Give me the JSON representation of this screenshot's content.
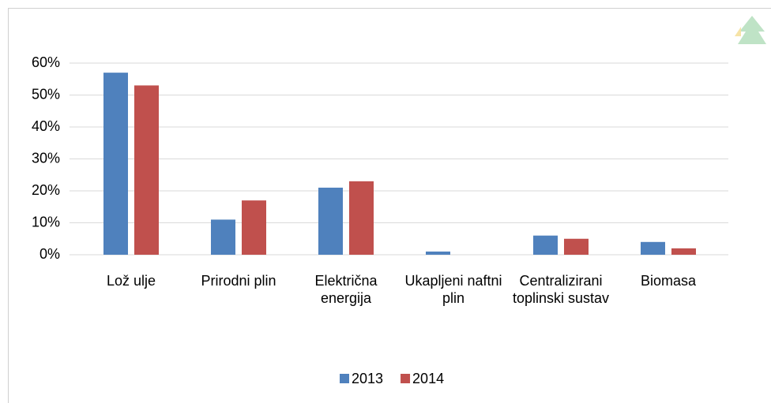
{
  "chart_data": {
    "type": "bar",
    "categories": [
      "Lož ulje",
      "Prirodni plin",
      "Električna energija",
      "Ukapljeni naftni plin",
      "Centralizirani toplinski sustav",
      "Biomasa"
    ],
    "series": [
      {
        "name": "2013",
        "color": "#4f81bd",
        "values": [
          57,
          11,
          21,
          1,
          6,
          4
        ]
      },
      {
        "name": "2014",
        "color": "#c0504d",
        "values": [
          53,
          17,
          23,
          0,
          5,
          2
        ]
      }
    ],
    "ylim": [
      0,
      60
    ],
    "yticks": [
      {
        "value": 0,
        "label": "0%"
      },
      {
        "value": 10,
        "label": "10%"
      },
      {
        "value": 20,
        "label": "20%"
      },
      {
        "value": 30,
        "label": "30%"
      },
      {
        "value": 40,
        "label": "40%"
      },
      {
        "value": 50,
        "label": "50%"
      },
      {
        "value": 60,
        "label": "60%"
      }
    ],
    "grid": true,
    "legend": "bottom"
  }
}
